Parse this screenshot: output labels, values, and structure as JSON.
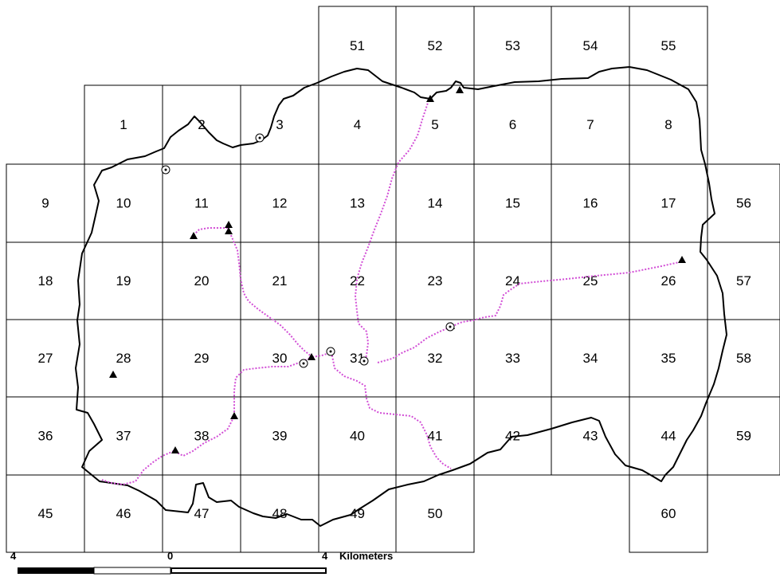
{
  "map": {
    "grid_cells": [
      {
        "label": "51"
      },
      {
        "label": "52"
      },
      {
        "label": "53"
      },
      {
        "label": "54"
      },
      {
        "label": "55"
      },
      {
        "label": "1"
      },
      {
        "label": "2"
      },
      {
        "label": "3"
      },
      {
        "label": "4"
      },
      {
        "label": "5"
      },
      {
        "label": "6"
      },
      {
        "label": "7"
      },
      {
        "label": "8"
      },
      {
        "label": "9"
      },
      {
        "label": "10"
      },
      {
        "label": "11"
      },
      {
        "label": "12"
      },
      {
        "label": "13"
      },
      {
        "label": "14"
      },
      {
        "label": "15"
      },
      {
        "label": "16"
      },
      {
        "label": "17"
      },
      {
        "label": "56"
      },
      {
        "label": "18"
      },
      {
        "label": "19"
      },
      {
        "label": "20"
      },
      {
        "label": "21"
      },
      {
        "label": "22"
      },
      {
        "label": "23"
      },
      {
        "label": "24"
      },
      {
        "label": "25"
      },
      {
        "label": "26"
      },
      {
        "label": "57"
      },
      {
        "label": "27"
      },
      {
        "label": "28"
      },
      {
        "label": "29"
      },
      {
        "label": "30"
      },
      {
        "label": "31"
      },
      {
        "label": "32"
      },
      {
        "label": "33"
      },
      {
        "label": "34"
      },
      {
        "label": "35"
      },
      {
        "label": "58"
      },
      {
        "label": "36"
      },
      {
        "label": "37"
      },
      {
        "label": "38"
      },
      {
        "label": "39"
      },
      {
        "label": "40"
      },
      {
        "label": "41"
      },
      {
        "label": "42"
      },
      {
        "label": "43"
      },
      {
        "label": "44"
      },
      {
        "label": "59"
      },
      {
        "label": "45"
      },
      {
        "label": "46"
      },
      {
        "label": "47"
      },
      {
        "label": "48"
      },
      {
        "label": "49"
      },
      {
        "label": "50"
      },
      {
        "label": "60"
      }
    ],
    "colors": {
      "grid": "#000000",
      "boundary": "#000000",
      "route": "#d24fd6",
      "marker": "#000000"
    },
    "marker_types": [
      "triangle",
      "circle-dot"
    ],
    "scale_bar": {
      "left_label": "4",
      "center_label": "0",
      "right_label": "4",
      "unit": "Kilometers"
    }
  }
}
